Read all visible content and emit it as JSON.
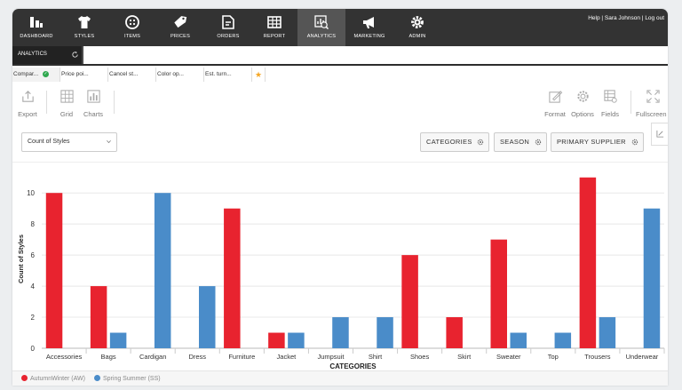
{
  "user_links": {
    "help": "Help",
    "sep1": " | ",
    "user": "Sara Johnson",
    "sep2": " | ",
    "logout": "Log out"
  },
  "nav": [
    {
      "key": "dashboard",
      "label": "DASHBOARD",
      "icon": "bar-chart-icon"
    },
    {
      "key": "styles",
      "label": "STYLES",
      "icon": "shirt-icon"
    },
    {
      "key": "items",
      "label": "ITEMS",
      "icon": "button-icon"
    },
    {
      "key": "prices",
      "label": "PRICES",
      "icon": "price-tag-icon"
    },
    {
      "key": "orders",
      "label": "ORDERS",
      "icon": "document-icon"
    },
    {
      "key": "report",
      "label": "REPORT",
      "icon": "table-icon"
    },
    {
      "key": "analytics",
      "label": "ANALYTICS",
      "icon": "analytics-icon",
      "active": true
    },
    {
      "key": "marketing",
      "label": "MARKETING",
      "icon": "megaphone-icon"
    },
    {
      "key": "admin",
      "label": "ADMIN",
      "icon": "gear-icon"
    }
  ],
  "section": {
    "title": "ANALYTICS",
    "refresh_icon": "refresh-icon"
  },
  "tabs": [
    "Compar...",
    "Price poi...",
    "Cancel st...",
    "Color op...",
    "Est. turn..."
  ],
  "toolbar": {
    "export": "Export",
    "grid": "Grid",
    "charts": "Charts",
    "format": "Format",
    "options": "Options",
    "fields": "Fields",
    "fullscreen": "Fullscreen"
  },
  "measure_select": {
    "value": "Count of Styles"
  },
  "filters": {
    "categories": "CATEGORIES",
    "season": "SEASON",
    "primary_supplier": "PRIMARY SUPPLIER"
  },
  "colors": {
    "accent_red": "#e8232f",
    "accent_blue": "#4a8cc9",
    "nav_bg": "#333333"
  },
  "chart_data": {
    "type": "bar",
    "categories": [
      "Accessories",
      "Bags",
      "Cardigan",
      "Dress",
      "Furniture",
      "Jacket",
      "Jumpsuit",
      "Shirt",
      "Shoes",
      "Skirt",
      "Sweater",
      "Top",
      "Trousers",
      "Underwear"
    ],
    "series": [
      {
        "name": "AutumnWinter (AW)",
        "color": "#e8232f",
        "values": [
          10,
          4,
          0,
          0,
          9,
          1,
          0,
          0,
          6,
          2,
          7,
          0,
          11,
          0
        ]
      },
      {
        "name": "Spring Summer (SS)",
        "color": "#4a8cc9",
        "values": [
          0,
          1,
          10,
          4,
          0,
          1,
          2,
          2,
          0,
          0,
          1,
          1,
          2,
          9
        ]
      }
    ],
    "xlabel": "CATEGORIES",
    "ylabel": "Count of Styles",
    "ylim": [
      0,
      11.5
    ],
    "yticks": [
      0,
      2,
      4,
      6,
      8,
      10
    ],
    "grid": true,
    "legend_position": "bottom-left"
  }
}
